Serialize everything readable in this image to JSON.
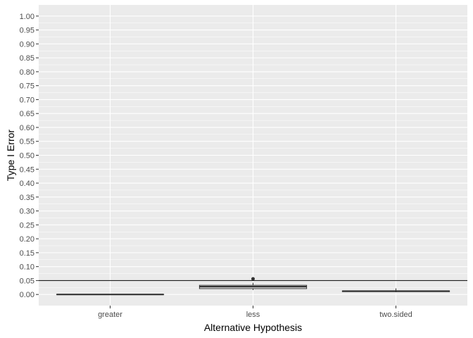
{
  "chart_data": {
    "type": "boxplot",
    "title": "",
    "xlabel": "Alternative Hypothesis",
    "ylabel": "Type I Error",
    "categories": [
      "greater",
      "less",
      "two.sided"
    ],
    "ylim": [
      -0.04,
      1.04
    ],
    "y_ticks": [
      0.0,
      0.05,
      0.1,
      0.15,
      0.2,
      0.25,
      0.3,
      0.35,
      0.4,
      0.45,
      0.5,
      0.55,
      0.6,
      0.65,
      0.7,
      0.75,
      0.8,
      0.85,
      0.9,
      0.95,
      1.0
    ],
    "y_tick_labels": [
      "0.00",
      "0.05",
      "0.10",
      "0.15",
      "0.20",
      "0.25",
      "0.30",
      "0.35",
      "0.40",
      "0.45",
      "0.50",
      "0.55",
      "0.60",
      "0.65",
      "0.70",
      "0.75",
      "0.80",
      "0.85",
      "0.90",
      "0.95",
      "1.00"
    ],
    "boxes": [
      {
        "category": "greater",
        "min": 0.0,
        "q1": 0.0,
        "median": 0.0,
        "q3": 0.0,
        "max": 0.0,
        "outliers": []
      },
      {
        "category": "less",
        "min": 0.016,
        "q1": 0.021,
        "median": 0.028,
        "q3": 0.033,
        "max": 0.042,
        "outliers": [
          0.056
        ]
      },
      {
        "category": "two.sided",
        "min": 0.008,
        "q1": 0.01,
        "median": 0.012,
        "q3": 0.013,
        "max": 0.022,
        "outliers": []
      }
    ],
    "reference_line": {
      "y": 0.05
    },
    "grid": true,
    "legend": "none",
    "colors": {
      "panel": "#ebebeb",
      "grid_major": "#ffffff",
      "box_fill": "#ffffff",
      "box_stroke": "#333333",
      "ref_line": "#000000"
    }
  }
}
